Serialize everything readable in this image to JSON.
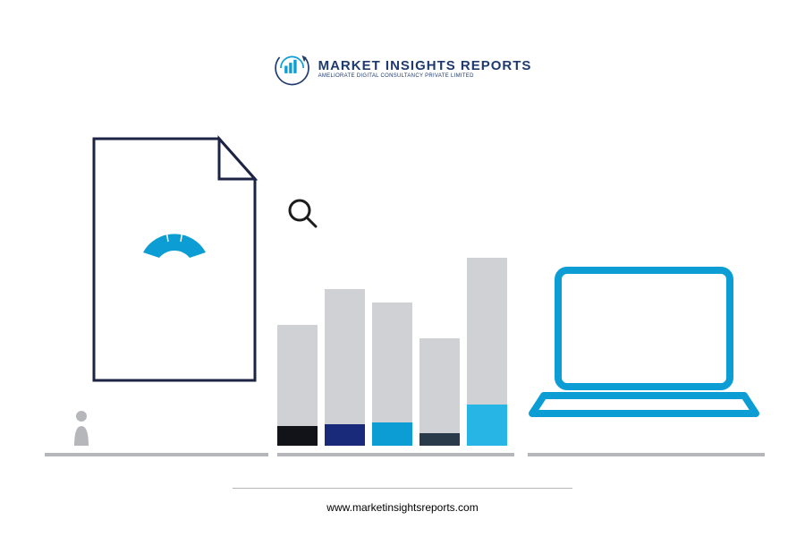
{
  "logo": {
    "title": "MARKET INSIGHTS REPORTS",
    "subtitle": "AMELIORATE DIGITAL CONSULTANCY PRIVATE LIMITED",
    "accent_color": "#1f3a6e",
    "circle_color": "#0c9dd4"
  },
  "document": {
    "stroke_color": "#1c2344",
    "stroke_width": 3,
    "gauge_fill": "#0c9dd4",
    "person_fill": "#b5b7bb",
    "baseline_color": "#b5b7bb",
    "baseline_width": 250
  },
  "chart": {
    "type": "bar",
    "magnifier_stroke": "#1c1c1c",
    "bar_top_color": "#cfd1d5",
    "bars": [
      {
        "total_height": 135,
        "bottom_height": 22,
        "bottom_color": "#121318"
      },
      {
        "total_height": 175,
        "bottom_height": 24,
        "bottom_color": "#1a2a7a"
      },
      {
        "total_height": 160,
        "bottom_height": 26,
        "bottom_color": "#0c9dd4"
      },
      {
        "total_height": 120,
        "bottom_height": 14,
        "bottom_color": "#2a3a4a"
      },
      {
        "total_height": 210,
        "bottom_height": 46,
        "bottom_color": "#26b5e4"
      }
    ],
    "baseline_color": "#b5b7bb",
    "baseline_width": 265
  },
  "laptop": {
    "stroke_color": "#0c9dd4",
    "stroke_width": 8,
    "baseline_color": "#b5b7bb",
    "baseline_width": 265
  },
  "footer": {
    "text": "www.marketinsightsreports.com",
    "color": "#1c1c1c",
    "divider_color": "#b5b7bb"
  },
  "background_color": "#ffffff"
}
